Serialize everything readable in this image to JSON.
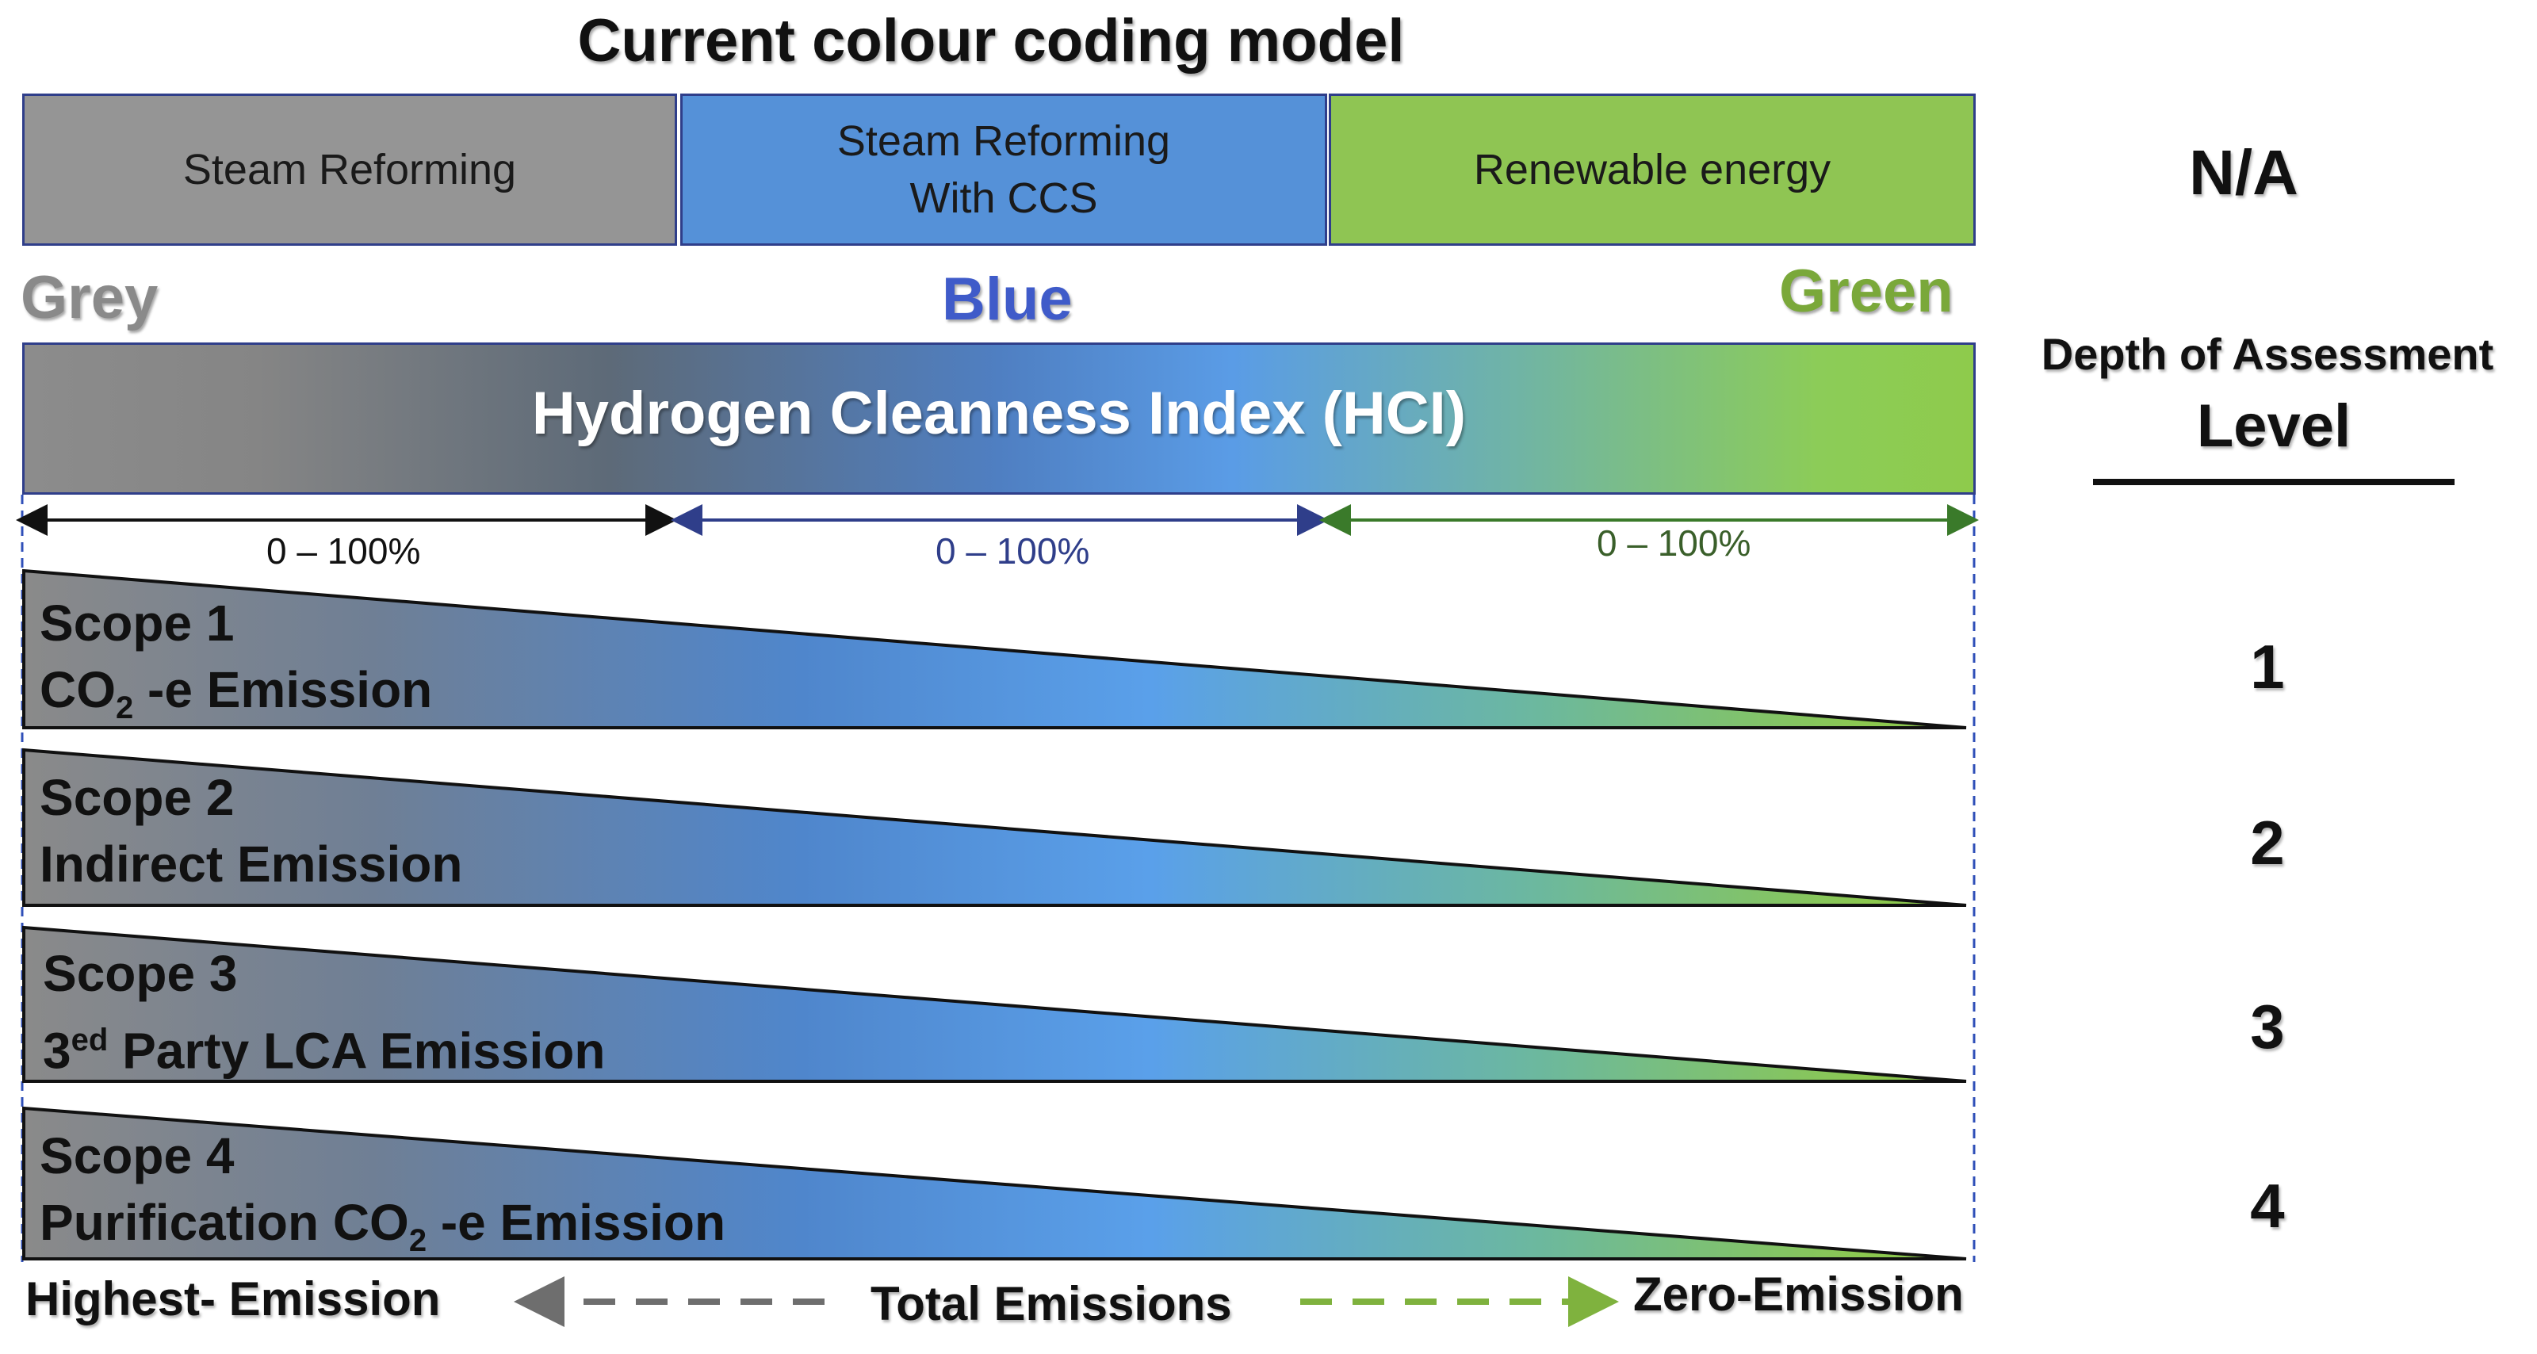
{
  "title": "Current colour coding model",
  "methods": [
    {
      "label": "Steam Reforming",
      "color": "#959595"
    },
    {
      "label": "Steam Reforming\nWith CCS",
      "color": "#5591d8"
    },
    {
      "label": "Renewable energy",
      "color": "#8fc553"
    }
  ],
  "color_labels": {
    "grey": {
      "text": "Grey",
      "color": "#8a8a8a"
    },
    "blue": {
      "text": "Blue",
      "color": "#3f5bc9"
    },
    "green": {
      "text": "Green",
      "color": "#7aa83a"
    }
  },
  "hci_label": "Hydrogen Cleanness Index (HCI)",
  "ranges": [
    {
      "label": "0 – 100%",
      "color": "#111111"
    },
    {
      "label": "0 – 100%",
      "color": "#2f3e8a"
    },
    {
      "label": "0 – 100%",
      "color": "#3a5f2a"
    }
  ],
  "scopes": [
    {
      "title": "Scope 1",
      "line_prefix": "CO",
      "line_sub": "2",
      "line_rest": " -e Emission",
      "level": "1"
    },
    {
      "title": "Scope 2",
      "line_prefix": "Indirect Emission",
      "line_sub": "",
      "line_rest": "",
      "level": "2"
    },
    {
      "title": "Scope 3",
      "line_prefix": "3",
      "line_sup": "ed",
      "line_rest": " Party LCA Emission",
      "level": "3"
    },
    {
      "title": "Scope 4",
      "line_prefix": "Purification  CO",
      "line_sub": "2",
      "line_rest": " -e Emission",
      "level": "4"
    }
  ],
  "right": {
    "na": "N/A",
    "depth_label": "Depth of Assessment",
    "level_label": "Level"
  },
  "bottom": {
    "left": "Highest- Emission",
    "center": "Total Emissions",
    "right": "Zero-Emission",
    "left_arrow_color": "#6e6e6e",
    "right_arrow_color": "#7fb23e"
  }
}
